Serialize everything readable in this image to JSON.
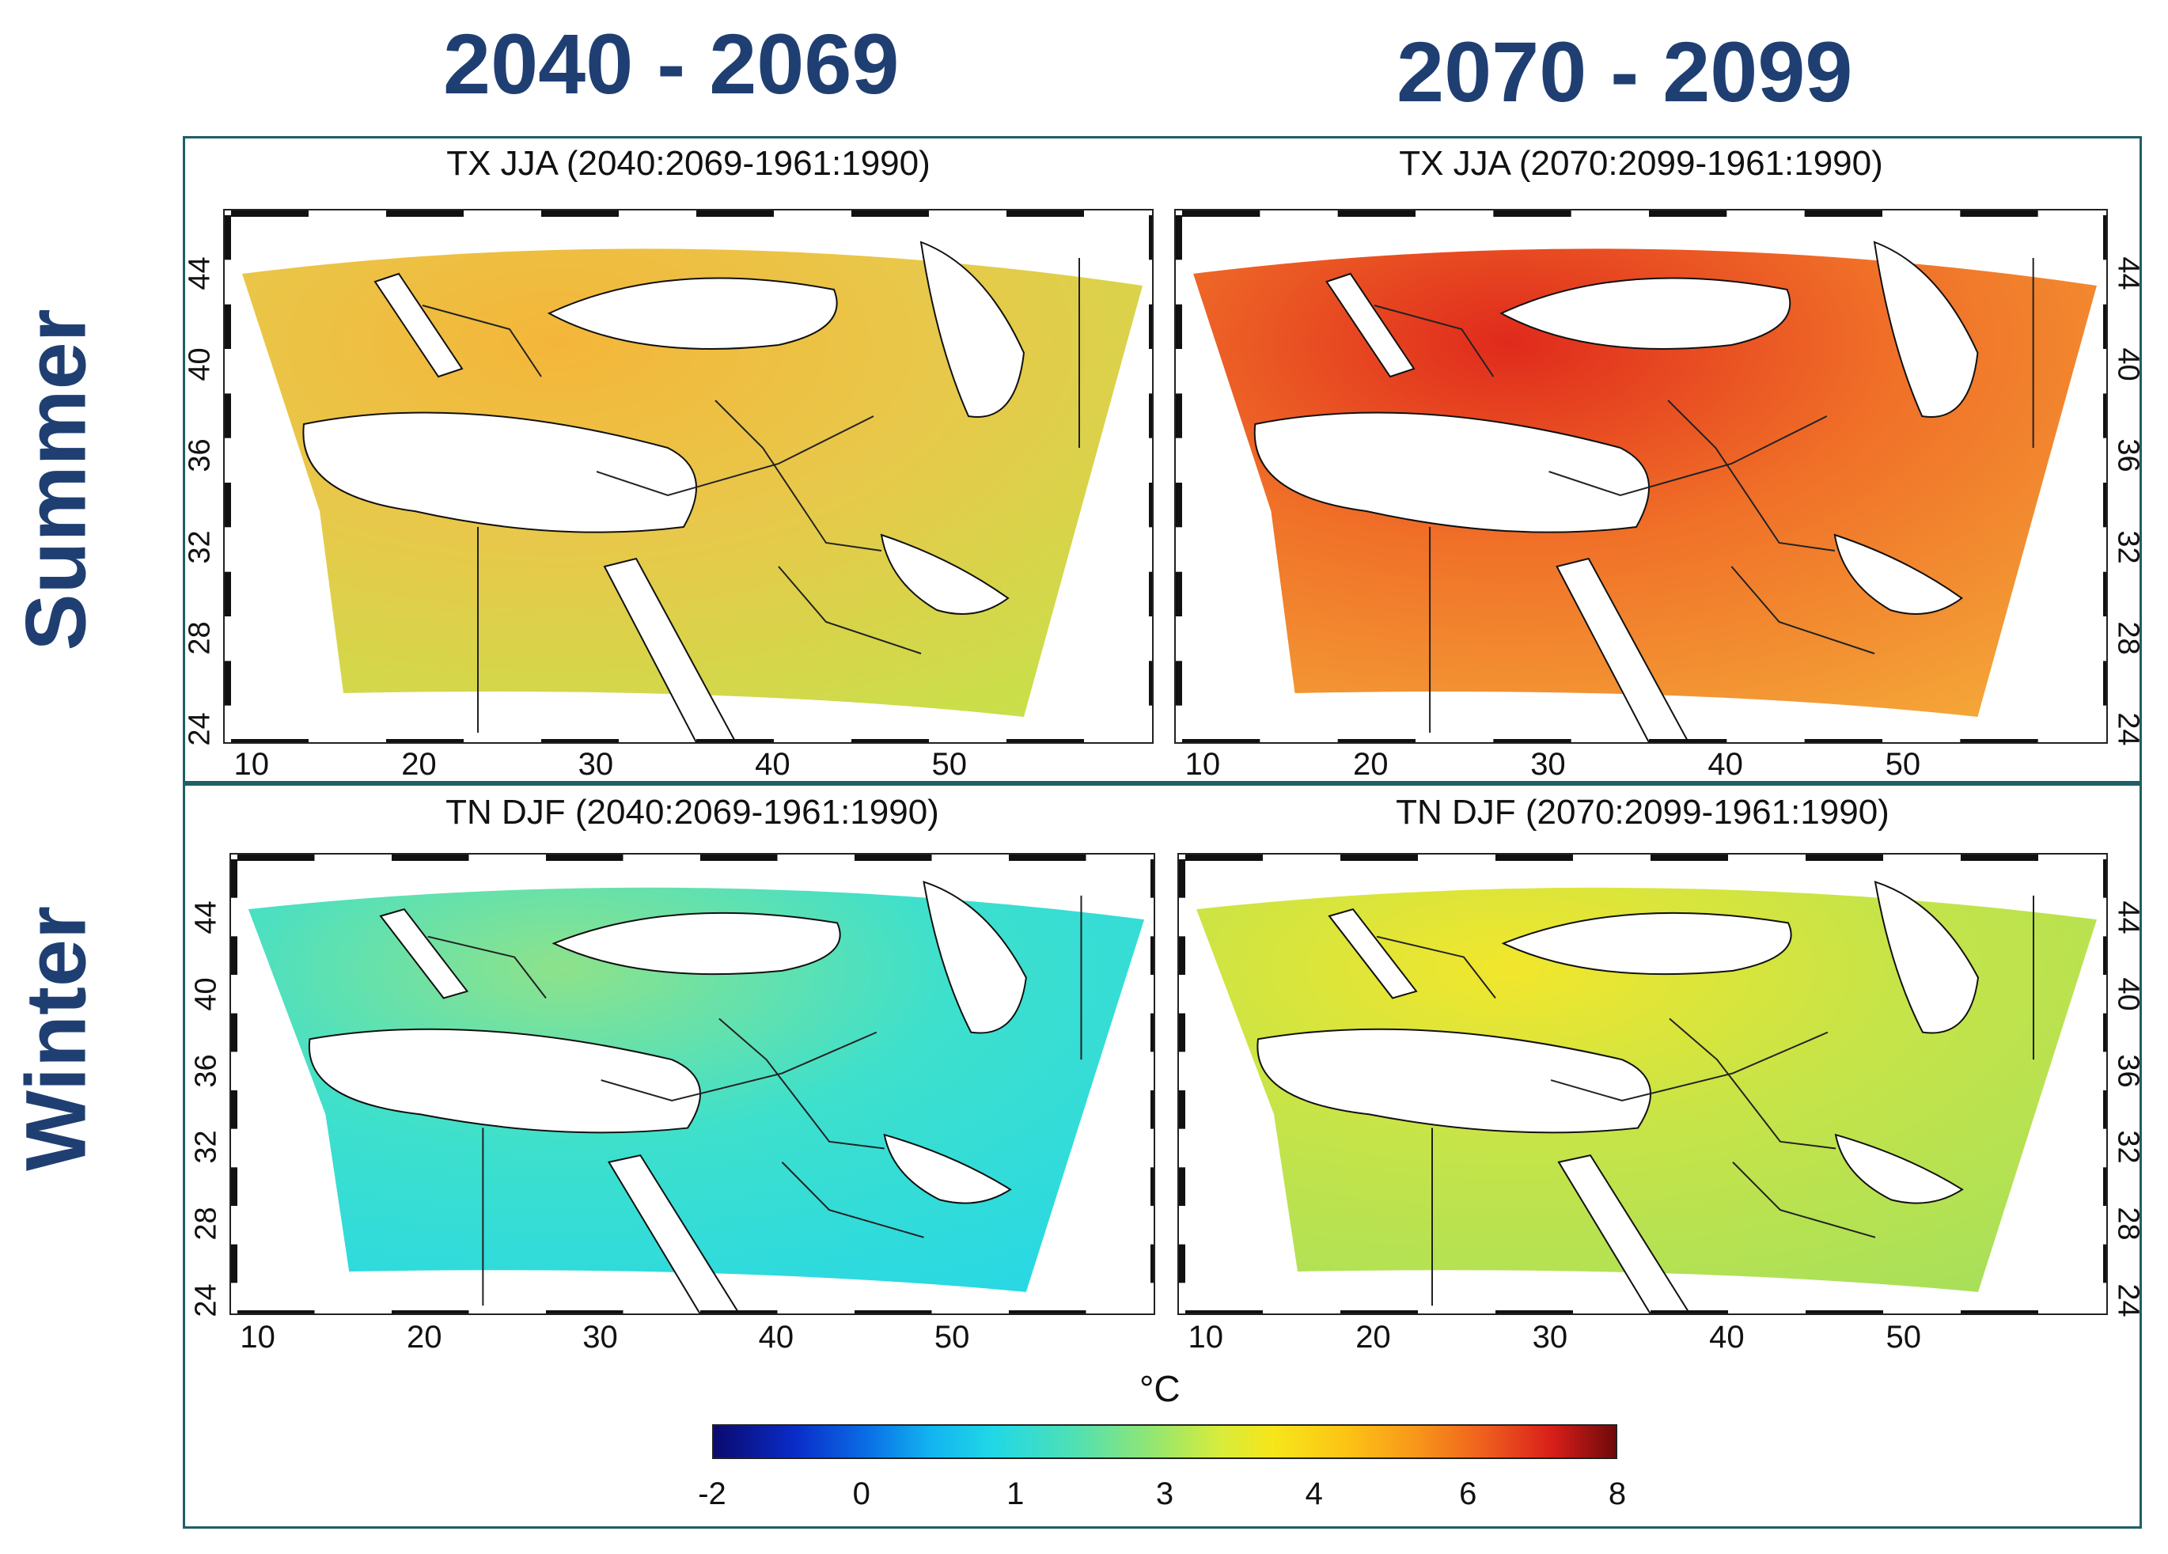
{
  "column_titles": [
    "2040 - 2069",
    "2070 - 2099"
  ],
  "row_titles": [
    "Summer",
    "Winter"
  ],
  "panels": [
    {
      "title": "TX JJA (2040:2069-1961:1990)",
      "season": "summer",
      "period": "2040-2069",
      "fill": [
        "#f4b63a",
        "#e8c84a",
        "#c8e04a"
      ],
      "dominant": "#d6e23e"
    },
    {
      "title": "TX JJA (2070:2099-1961:1990)",
      "season": "summer",
      "period": "2070-2099",
      "fill": [
        "#e02a1c",
        "#f07028",
        "#f4a638"
      ],
      "dominant": "#f29a30"
    },
    {
      "title": "TN DJF (2040:2069-1961:1990)",
      "season": "winter",
      "period": "2040-2069",
      "fill": [
        "#8ee28a",
        "#3ee0cc",
        "#28d8e4"
      ],
      "dominant": "#40dcc8"
    },
    {
      "title": "TN DJF (2070:2099-1961:1990)",
      "season": "winter",
      "period": "2070-2099",
      "fill": [
        "#f2e62c",
        "#c6e448",
        "#a8e05a"
      ],
      "dominant": "#dde838"
    }
  ],
  "axes": {
    "lon_ticks": [
      "10",
      "20",
      "30",
      "40",
      "50"
    ],
    "lat_ticks": [
      "44",
      "40",
      "36",
      "32",
      "28",
      "24"
    ]
  },
  "colorbar": {
    "unit": "°C",
    "ticks": [
      "-2",
      "0",
      "1",
      "3",
      "4",
      "6",
      "8"
    ]
  }
}
